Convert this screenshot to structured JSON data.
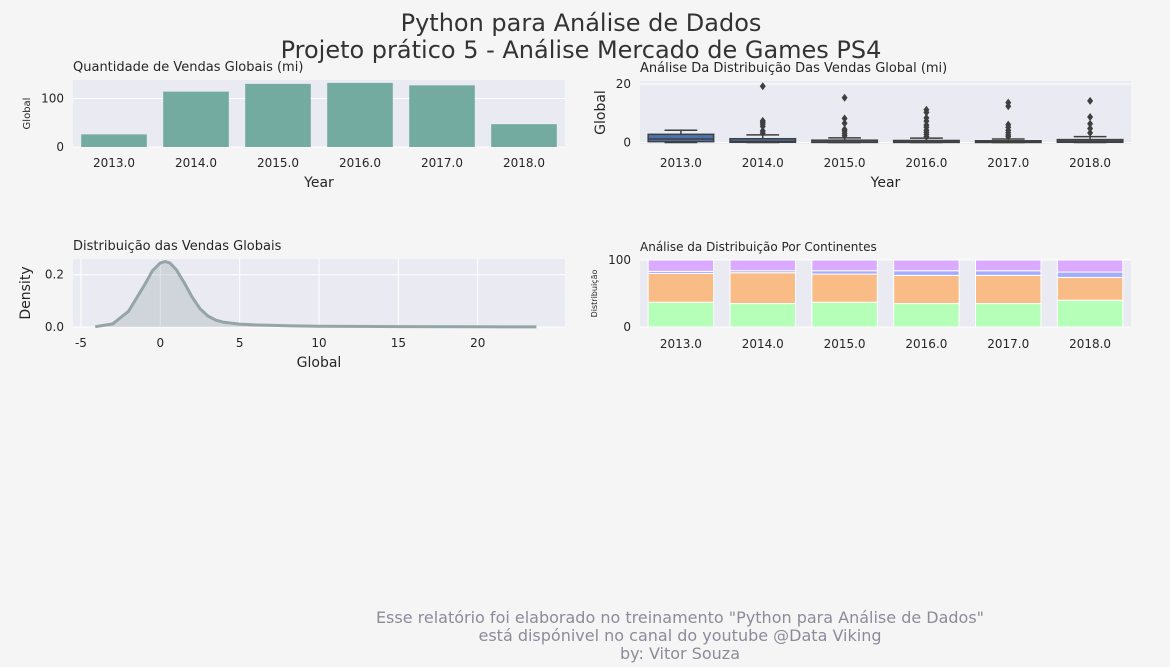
{
  "suptitle": [
    "Python para Análise de Dados",
    "Projeto prático 5 - Análise Mercado de Games PS4"
  ],
  "footer": [
    "Esse relatório foi elaborado no treinamento \"Python para Análise de Dados\"",
    "está dispónivel no canal do youtube @Data Viking",
    "by: Vitor Souza"
  ],
  "colors": {
    "panel_bg": "#eaeaf2",
    "bar": "#73aba1",
    "kde": "#95a5a6",
    "box_fill": "#4c72b0",
    "box_line": "#3f3f3f"
  },
  "chart_data": [
    {
      "type": "bar",
      "title": "Quantidade de Vendas Globais (mi)",
      "xlabel": "Year",
      "ylabel": "Global",
      "categories": [
        "2013.0",
        "2014.0",
        "2015.0",
        "2016.0",
        "2017.0",
        "2018.0"
      ],
      "values": [
        26,
        114,
        130,
        132,
        127,
        47
      ],
      "ylim": [
        0,
        138
      ],
      "yticks": [
        0,
        100
      ],
      "grid": true
    },
    {
      "type": "box",
      "title": "Análise Da Distribuição Das Vendas Global (mi)",
      "xlabel": "Year",
      "ylabel": "Global",
      "categories": [
        "2013.0",
        "2014.0",
        "2015.0",
        "2016.0",
        "2017.0",
        "2018.0"
      ],
      "boxes": [
        {
          "q1": 0.3,
          "median": 1.2,
          "q3": 2.8,
          "whisker_low": 0.0,
          "whisker_high": 4.2,
          "outliers": []
        },
        {
          "q1": 0.1,
          "median": 0.4,
          "q3": 1.3,
          "whisker_low": 0.0,
          "whisker_high": 2.6,
          "outliers": [
            3.2,
            4.0,
            5.5,
            6.3,
            6.9,
            7.4,
            19.2
          ]
        },
        {
          "q1": 0.05,
          "median": 0.2,
          "q3": 0.8,
          "whisker_low": 0.0,
          "whisker_high": 1.6,
          "outliers": [
            2.3,
            3.1,
            3.9,
            4.5,
            6.6,
            8.2,
            15.3
          ]
        },
        {
          "q1": 0.05,
          "median": 0.2,
          "q3": 0.7,
          "whisker_low": 0.0,
          "whisker_high": 1.5,
          "outliers": [
            2.0,
            2.8,
            3.5,
            4.2,
            5.2,
            6.0,
            7.3,
            8.4,
            10.3,
            11.2
          ]
        },
        {
          "q1": 0.03,
          "median": 0.15,
          "q3": 0.6,
          "whisker_low": 0.0,
          "whisker_high": 1.2,
          "outliers": [
            2.0,
            2.6,
            3.4,
            4.2,
            5.2,
            6.1,
            12.4,
            13.6
          ]
        },
        {
          "q1": 0.1,
          "median": 0.4,
          "q3": 1.0,
          "whisker_low": 0.0,
          "whisker_high": 2.0,
          "outliers": [
            3.3,
            4.8,
            6.4,
            8.7,
            14.2
          ]
        }
      ],
      "ylim": [
        -0.5,
        21
      ],
      "yticks": [
        0,
        20
      ],
      "grid": true
    },
    {
      "type": "area",
      "subtype": "kde",
      "title": "Distribuição das Vendas Globais",
      "xlabel": "Global",
      "ylabel": "Density",
      "x": [
        -4.1,
        -3,
        -2,
        -1,
        -0.5,
        0,
        0.3,
        0.6,
        1,
        1.5,
        2,
        2.5,
        3,
        3.5,
        4,
        5,
        6,
        8,
        10,
        15,
        20,
        23.7
      ],
      "y": [
        0.001,
        0.012,
        0.06,
        0.16,
        0.215,
        0.245,
        0.25,
        0.245,
        0.22,
        0.17,
        0.115,
        0.07,
        0.042,
        0.026,
        0.018,
        0.011,
        0.008,
        0.005,
        0.003,
        0.0015,
        0.0008,
        0.0003
      ],
      "xlim": [
        -5.5,
        25.5
      ],
      "ylim": [
        0,
        0.26
      ],
      "xticks": [
        -5,
        0,
        5,
        10,
        15,
        20
      ],
      "yticks": [
        0.0,
        0.2
      ],
      "grid": true
    },
    {
      "type": "bar",
      "subtype": "stacked-percent",
      "title": "Análise da Distribuição Por Continentes",
      "ylabel": "Distribuição",
      "categories": [
        "2013.0",
        "2014.0",
        "2015.0",
        "2016.0",
        "2017.0",
        "2018.0"
      ],
      "series": [
        {
          "color": "#b5ffb9",
          "values": [
            37,
            35,
            37,
            35,
            35,
            40
          ]
        },
        {
          "color": "#f9bc86",
          "values": [
            43,
            46,
            42,
            42,
            42,
            34
          ]
        },
        {
          "color": "#a3acff",
          "values": [
            3,
            3,
            5,
            7,
            7,
            8
          ]
        },
        {
          "color": "#d9aaff",
          "values": [
            17,
            16,
            16,
            16,
            16,
            18
          ]
        }
      ],
      "ylim": [
        0,
        100
      ],
      "yticks": [
        0,
        100
      ],
      "grid": true
    }
  ]
}
